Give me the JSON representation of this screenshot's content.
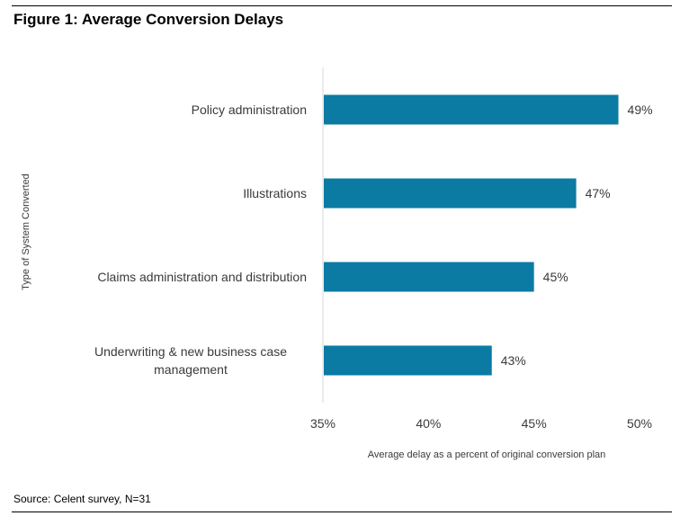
{
  "figure_title": "Figure 1: Average Conversion Delays",
  "source": "Source: Celent survey, N=31",
  "chart_data": {
    "type": "bar",
    "orientation": "horizontal",
    "categories": [
      [
        "Policy administration"
      ],
      [
        "Illustrations"
      ],
      [
        "Claims administration and distribution"
      ],
      [
        "Underwriting & new business case",
        "management"
      ]
    ],
    "values": [
      49,
      47,
      45,
      43
    ],
    "value_labels": [
      "49%",
      "47%",
      "45%",
      "43%"
    ],
    "xlim": [
      35,
      50
    ],
    "xticks": [
      35,
      40,
      45,
      50
    ],
    "xtick_labels": [
      "35%",
      "40%",
      "45%",
      "50%"
    ],
    "xlabel": "Average delay as a percent of original conversion plan",
    "ylabel": "Type of System Converted",
    "grid": false,
    "bar_color": "#0b7ba3"
  }
}
